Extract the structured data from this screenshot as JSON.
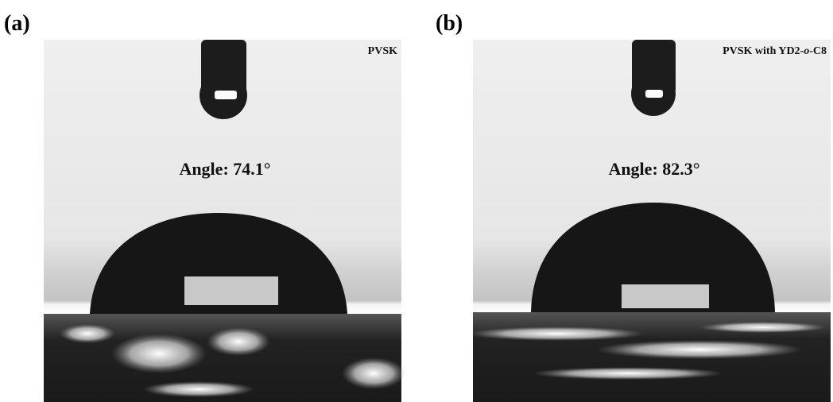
{
  "panels": [
    {
      "label": "(a)",
      "sample": [
        "PVSK"
      ],
      "angle": "Angle: 74.1°"
    },
    {
      "label": "(b)",
      "sample": [
        "PVSK with YD2-",
        "o",
        "-C8"
      ],
      "angle": "Angle: 82.3°"
    }
  ]
}
